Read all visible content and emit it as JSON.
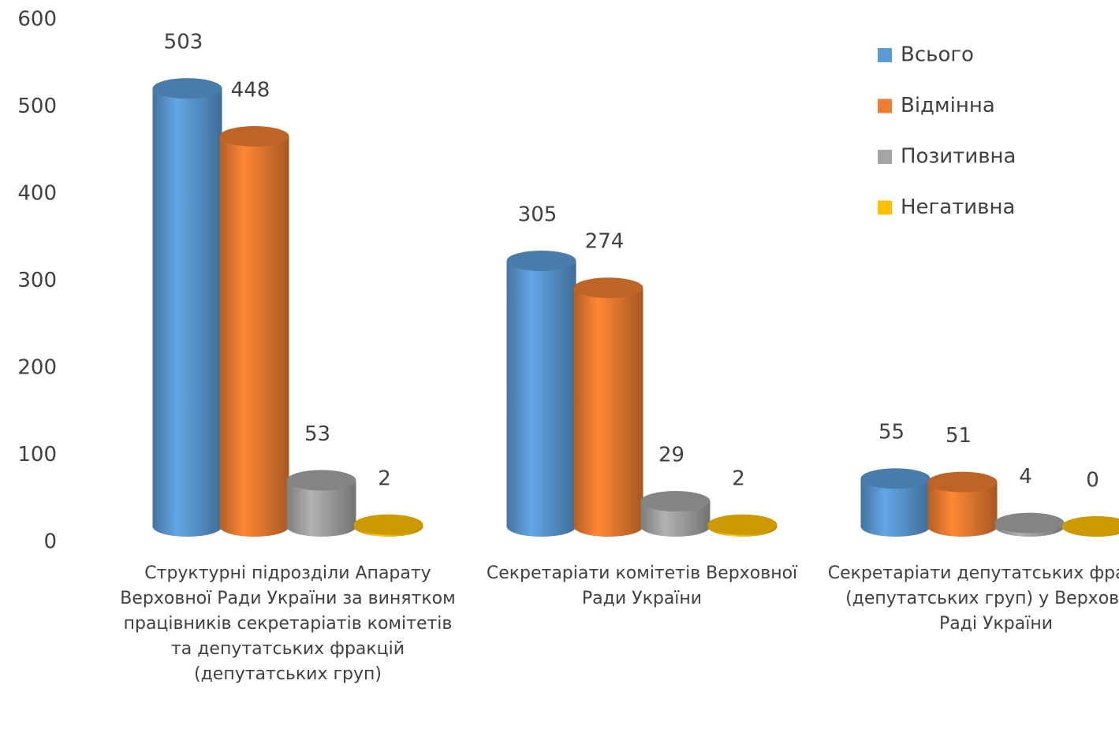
{
  "chart_data": {
    "type": "bar",
    "categories": [
      "Структурні підрозділи Апарату Верховної Ради України за винятком працівників секретаріатів комітетів та депутатських фракцій (депутатських груп)",
      "Секретаріати комітетів Верховної Ради України",
      "Секретаріати депутатських фракцій (депутатських груп) у Верховній Раді України"
    ],
    "series": [
      {
        "name": "Всього",
        "color": "#5b9bd5",
        "values": [
          503,
          305,
          55
        ]
      },
      {
        "name": "Відмінна",
        "color": "#ed7d31",
        "values": [
          448,
          274,
          51
        ]
      },
      {
        "name": "Позитивна",
        "color": "#a5a5a5",
        "values": [
          53,
          29,
          4
        ]
      },
      {
        "name": "Негативна",
        "color": "#ffc000",
        "values": [
          2,
          2,
          0
        ]
      }
    ],
    "ylim": [
      0,
      600
    ],
    "yticks": [
      0,
      100,
      200,
      300,
      400,
      500,
      600
    ],
    "grid": false,
    "legend": "right"
  }
}
